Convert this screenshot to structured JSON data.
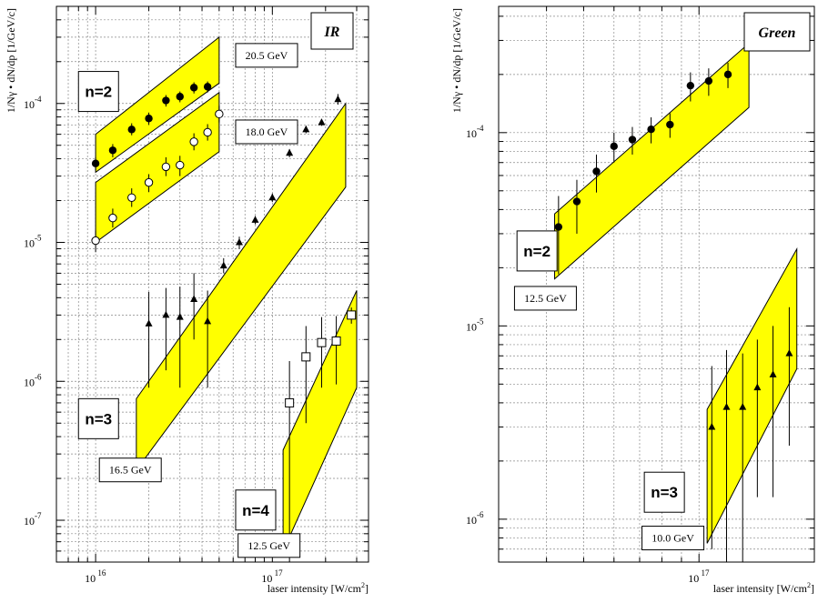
{
  "chart_data": [
    {
      "type": "scatter",
      "title": "IR",
      "xlabel": "laser intensity [W/cm",
      "xlabel_sup": "2",
      "xlabel_end": "]",
      "ylabel": "1/Nγ • dN/dp   [1/GeV/c]",
      "x_scale": "log",
      "y_scale": "log",
      "xlim": [
        6000000000000000.0,
        3.5e+17
      ],
      "ylim": [
        5e-08,
        0.0005
      ],
      "grid": true,
      "x_ticks": [
        {
          "base": "10",
          "exp": "16",
          "value": 1e+16
        },
        {
          "base": "10",
          "exp": "17",
          "value": 1e+17
        }
      ],
      "y_ticks": [
        {
          "base": "10",
          "exp": "-7",
          "value": 1e-07
        },
        {
          "base": "10",
          "exp": "-6",
          "value": 1e-06
        },
        {
          "base": "10",
          "exp": "-5",
          "value": 1e-05
        },
        {
          "base": "10",
          "exp": "-4",
          "value": 0.0001
        }
      ],
      "bands": [
        {
          "color": "#ffff00",
          "upper": [
            [
              1e+16,
              6e-05
            ],
            [
              5e+16,
              0.0003
            ]
          ],
          "lower": [
            [
              1e+16,
              3.2e-05
            ],
            [
              5e+16,
              0.00014
            ]
          ]
        },
        {
          "color": "#ffff00",
          "upper": [
            [
              1e+16,
              2.7e-05
            ],
            [
              5e+16,
              0.00012
            ]
          ],
          "lower": [
            [
              1e+16,
              1e-05
            ],
            [
              5e+16,
              4.5e-05
            ]
          ]
        },
        {
          "color": "#ffff00",
          "upper": [
            [
              1.7e+16,
              7.5e-07
            ],
            [
              2.6e+17,
              0.0001
            ]
          ],
          "lower": [
            [
              1.7e+16,
              2.3e-07
            ],
            [
              2.6e+17,
              2.5e-05
            ]
          ]
        },
        {
          "color": "#ffff00",
          "upper": [
            [
              1.15e+17,
              3.2e-07
            ],
            [
              3e+17,
              4.5e-06
            ]
          ],
          "lower": [
            [
              1.15e+17,
              6e-08
            ],
            [
              3e+17,
              9e-07
            ]
          ]
        }
      ],
      "series": [
        {
          "marker": "circle-filled",
          "points": [
            {
              "x": 1e+16,
              "y": 3.7e-05,
              "lo": 3.3e-05,
              "hi": 4.1e-05
            },
            {
              "x": 1.25e+16,
              "y": 4.6e-05,
              "lo": 4.1e-05,
              "hi": 5.1e-05
            },
            {
              "x": 1.6e+16,
              "y": 6.5e-05,
              "lo": 5.9e-05,
              "hi": 7.2e-05
            },
            {
              "x": 2e+16,
              "y": 7.8e-05,
              "lo": 7e-05,
              "hi": 8.6e-05
            },
            {
              "x": 2.5e+16,
              "y": 0.000105,
              "lo": 9.5e-05,
              "hi": 0.000115
            },
            {
              "x": 3e+16,
              "y": 0.000112,
              "lo": 0.000102,
              "hi": 0.000122
            },
            {
              "x": 3.6e+16,
              "y": 0.00013,
              "lo": 0.000118,
              "hi": 0.000142
            },
            {
              "x": 4.3e+16,
              "y": 0.000132,
              "lo": 0.00012,
              "hi": 0.000144
            }
          ]
        },
        {
          "marker": "circle-open",
          "points": [
            {
              "x": 1e+16,
              "y": 1.03e-05,
              "lo": 8.5e-06,
              "hi": 1.22e-05
            },
            {
              "x": 1.25e+16,
              "y": 1.5e-05,
              "lo": 1.28e-05,
              "hi": 1.75e-05
            },
            {
              "x": 1.6e+16,
              "y": 2.1e-05,
              "lo": 1.8e-05,
              "hi": 2.45e-05
            },
            {
              "x": 2e+16,
              "y": 2.7e-05,
              "lo": 2.3e-05,
              "hi": 3.1e-05
            },
            {
              "x": 2.5e+16,
              "y": 3.5e-05,
              "lo": 3e-05,
              "hi": 4.1e-05
            },
            {
              "x": 3e+16,
              "y": 3.6e-05,
              "lo": 3e-05,
              "hi": 4.2e-05
            },
            {
              "x": 3.6e+16,
              "y": 5.3e-05,
              "lo": 4.6e-05,
              "hi": 6.1e-05
            },
            {
              "x": 4.3e+16,
              "y": 6.2e-05,
              "lo": 5.4e-05,
              "hi": 7.1e-05
            },
            {
              "x": 5e+16,
              "y": 8.4e-05,
              "lo": 7.3e-05,
              "hi": 9.6e-05
            }
          ]
        },
        {
          "marker": "triangle-filled",
          "points": [
            {
              "x": 2e+16,
              "y": 2.6e-06,
              "lo": 9e-07,
              "hi": 4.4e-06
            },
            {
              "x": 2.5e+16,
              "y": 3e-06,
              "lo": 1.2e-06,
              "hi": 4.7e-06
            },
            {
              "x": 3e+16,
              "y": 2.9e-06,
              "lo": 9e-07,
              "hi": 4.8e-06
            },
            {
              "x": 3.6e+16,
              "y": 3.9e-06,
              "lo": 2e-06,
              "hi": 6e-06
            },
            {
              "x": 4.3e+16,
              "y": 2.7e-06,
              "lo": 9e-07,
              "hi": 4.5e-06
            },
            {
              "x": 5.3e+16,
              "y": 6.8e-06,
              "lo": 6e-06,
              "hi": 7.7e-06
            },
            {
              "x": 6.5e+16,
              "y": 1e-05,
              "lo": 9e-06,
              "hi": 1.1e-05
            },
            {
              "x": 8e+16,
              "y": 1.45e-05,
              "lo": 1.35e-05,
              "hi": 1.55e-05
            },
            {
              "x": 1e+17,
              "y": 2.1e-05,
              "lo": 1.95e-05,
              "hi": 2.25e-05
            },
            {
              "x": 1.25e+17,
              "y": 4.4e-05,
              "lo": 4.1e-05,
              "hi": 4.7e-05
            },
            {
              "x": 1.55e+17,
              "y": 6.5e-05,
              "lo": 6.1e-05,
              "hi": 6.9e-05
            },
            {
              "x": 1.9e+17,
              "y": 7.3e-05,
              "lo": 6.9e-05,
              "hi": 7.7e-05
            },
            {
              "x": 2.35e+17,
              "y": 0.000107,
              "lo": 9.8e-05,
              "hi": 0.000117
            }
          ]
        },
        {
          "marker": "square-open",
          "points": [
            {
              "x": 1.25e+17,
              "y": 7e-07,
              "lo": 5e-08,
              "hi": 1.4e-06
            },
            {
              "x": 1.55e+17,
              "y": 1.5e-06,
              "lo": 5e-07,
              "hi": 2.5e-06
            },
            {
              "x": 1.9e+17,
              "y": 1.9e-06,
              "lo": 9e-07,
              "hi": 2.9e-06
            },
            {
              "x": 2.3e+17,
              "y": 1.95e-06,
              "lo": 9.5e-07,
              "hi": 2.95e-06
            },
            {
              "x": 2.8e+17,
              "y": 3e-06,
              "lo": 2.6e-06,
              "hi": 3.4e-06
            }
          ]
        }
      ],
      "labels": [
        {
          "text": "n=2",
          "kind": "big",
          "x": 8000000000000000.0,
          "y": 0.00017
        },
        {
          "text": "n=3",
          "kind": "big",
          "x": 8000000000000000.0,
          "y": 7.5e-07
        },
        {
          "text": "n=4",
          "kind": "big",
          "x": 6.2e+16,
          "y": 1.65e-07
        },
        {
          "text": "20.5 GeV",
          "kind": "small",
          "x": 6.2e+16,
          "y": 0.00027
        },
        {
          "text": "18.0 GeV",
          "kind": "small",
          "x": 6.2e+16,
          "y": 7.6e-05
        },
        {
          "text": "16.5 GeV",
          "kind": "small",
          "x": 1.05e+16,
          "y": 2.8e-07
        },
        {
          "text": "12.5 GeV",
          "kind": "small",
          "x": 6.4e+16,
          "y": 8e-08
        }
      ]
    },
    {
      "type": "scatter",
      "title": "Green",
      "xlabel": "laser intensity [W/cm",
      "xlabel_sup": "2",
      "xlabel_end": "]",
      "ylabel": "1/Nγ • dN/dp   [1/GeV/c]",
      "x_scale": "log",
      "y_scale": "log",
      "xlim": [
        3e+16,
        2e+17
      ],
      "ylim": [
        6e-07,
        0.00045
      ],
      "grid": true,
      "x_ticks": [
        {
          "base": "10",
          "exp": "17",
          "value": 1e+17
        }
      ],
      "y_ticks": [
        {
          "base": "10",
          "exp": "-6",
          "value": 1e-06
        },
        {
          "base": "10",
          "exp": "-5",
          "value": 1e-05
        },
        {
          "base": "10",
          "exp": "-4",
          "value": 0.0001
        }
      ],
      "bands": [
        {
          "color": "#ffff00",
          "upper": [
            [
              4.2e+16,
              3.8e-05
            ],
            [
              1.35e+17,
              0.00029
            ]
          ],
          "lower": [
            [
              4.2e+16,
              1.75e-05
            ],
            [
              1.35e+17,
              0.000135
            ]
          ]
        },
        {
          "color": "#ffff00",
          "upper": [
            [
              1.05e+17,
              3.7e-06
            ],
            [
              1.8e+17,
              2.5e-05
            ]
          ],
          "lower": [
            [
              1.05e+17,
              7.5e-07
            ],
            [
              1.8e+17,
              6e-06
            ]
          ]
        }
      ],
      "series": [
        {
          "marker": "circle-filled",
          "points": [
            {
              "x": 4.3e+16,
              "y": 3.25e-05,
              "lo": 1.85e-05,
              "hi": 4.7e-05
            },
            {
              "x": 4.8e+16,
              "y": 4.4e-05,
              "lo": 3e-05,
              "hi": 5.7e-05
            },
            {
              "x": 5.4e+16,
              "y": 6.3e-05,
              "lo": 4.9e-05,
              "hi": 7.7e-05
            },
            {
              "x": 6e+16,
              "y": 8.5e-05,
              "lo": 7e-05,
              "hi": 0.0001
            },
            {
              "x": 6.7e+16,
              "y": 9.2e-05,
              "lo": 7.7e-05,
              "hi": 0.000107
            },
            {
              "x": 7.5e+16,
              "y": 0.000104,
              "lo": 8.8e-05,
              "hi": 0.00012
            },
            {
              "x": 8.4e+16,
              "y": 0.00011,
              "lo": 9.4e-05,
              "hi": 0.000126
            },
            {
              "x": 9.5e+16,
              "y": 0.000175,
              "lo": 0.000145,
              "hi": 0.000205
            },
            {
              "x": 1.06e+17,
              "y": 0.000185,
              "lo": 0.000155,
              "hi": 0.000215
            },
            {
              "x": 1.19e+17,
              "y": 0.0002,
              "lo": 0.00017,
              "hi": 0.00023
            }
          ]
        },
        {
          "marker": "triangle-filled",
          "points": [
            {
              "x": 1.08e+17,
              "y": 3e-06,
              "lo": 7e-07,
              "hi": 6.2e-06
            },
            {
              "x": 1.18e+17,
              "y": 3.8e-06,
              "lo": 6e-07,
              "hi": 7.5e-06
            },
            {
              "x": 1.3e+17,
              "y": 3.8e-06,
              "lo": 6e-07,
              "hi": 7.2e-06
            },
            {
              "x": 1.42e+17,
              "y": 4.8e-06,
              "lo": 1.3e-06,
              "hi": 8.5e-06
            },
            {
              "x": 1.56e+17,
              "y": 5.6e-06,
              "lo": 1.3e-06,
              "hi": 1e-05
            },
            {
              "x": 1.72e+17,
              "y": 7.2e-06,
              "lo": 2.4e-06,
              "hi": 1.25e-05
            }
          ]
        }
      ],
      "labels": [
        {
          "text": "n=2",
          "kind": "big",
          "x": 3.35e+16,
          "y": 3.1e-05
        },
        {
          "text": "n=3",
          "kind": "big",
          "x": 7.2e+16,
          "y": 1.75e-06
        },
        {
          "text": "12.5 GeV",
          "kind": "small",
          "x": 3.3e+16,
          "y": 1.6e-05
        },
        {
          "text": "10.0 GeV",
          "kind": "small",
          "x": 7.1e+16,
          "y": 9.2e-07
        }
      ]
    }
  ]
}
